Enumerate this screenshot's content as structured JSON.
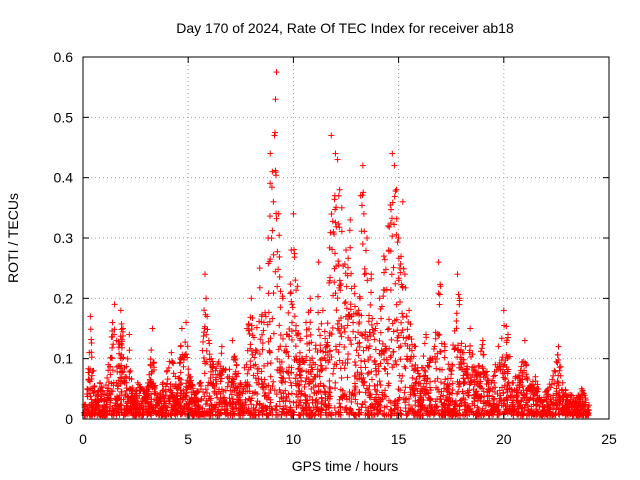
{
  "chart_data": {
    "type": "scatter",
    "title": "Day 170 of 2024, Rate Of TEC Index for receiver ab18",
    "xlabel": "GPS time / hours",
    "ylabel": "ROTI / TECUs",
    "xlim": [
      0,
      25
    ],
    "ylim": [
      0,
      0.6
    ],
    "x_ticks": [
      0,
      5,
      10,
      15,
      20,
      25
    ],
    "x_tick_labels": [
      "0",
      "5",
      "10",
      "15",
      "20",
      "25"
    ],
    "y_ticks": [
      0,
      0.1,
      0.2,
      0.3,
      0.4,
      0.5,
      0.6
    ],
    "y_tick_labels": [
      "0",
      "0.1",
      "0.2",
      "0.3",
      "0.4",
      "0.5",
      "0.6"
    ],
    "grid": true,
    "marker": "+",
    "marker_color": "#ff0000",
    "series": [
      {
        "name": "ROTI",
        "note": "approximate sample of the dense point cloud; [hour, ROTI] pairs",
        "points": [
          [
            0.1,
            0.02
          ],
          [
            0.2,
            0.05
          ],
          [
            0.3,
            0.11
          ],
          [
            0.35,
            0.17
          ],
          [
            0.5,
            0.08
          ],
          [
            0.6,
            0.03
          ],
          [
            0.8,
            0.06
          ],
          [
            1.0,
            0.04
          ],
          [
            1.2,
            0.09
          ],
          [
            1.4,
            0.16
          ],
          [
            1.5,
            0.19
          ],
          [
            1.6,
            0.13
          ],
          [
            1.8,
            0.18
          ],
          [
            1.9,
            0.15
          ],
          [
            2.0,
            0.07
          ],
          [
            2.2,
            0.14
          ],
          [
            2.4,
            0.03
          ],
          [
            2.6,
            0.06
          ],
          [
            2.8,
            0.05
          ],
          [
            3.0,
            0.04
          ],
          [
            3.2,
            0.09
          ],
          [
            3.3,
            0.15
          ],
          [
            3.5,
            0.03
          ],
          [
            3.8,
            0.06
          ],
          [
            4.0,
            0.08
          ],
          [
            4.2,
            0.11
          ],
          [
            4.5,
            0.05
          ],
          [
            4.7,
            0.15
          ],
          [
            4.9,
            0.16
          ],
          [
            5.1,
            0.07
          ],
          [
            5.3,
            0.04
          ],
          [
            5.6,
            0.06
          ],
          [
            5.8,
            0.24
          ],
          [
            5.85,
            0.2
          ],
          [
            5.9,
            0.17
          ],
          [
            6.1,
            0.1
          ],
          [
            6.3,
            0.08
          ],
          [
            6.6,
            0.12
          ],
          [
            6.9,
            0.06
          ],
          [
            7.1,
            0.13
          ],
          [
            7.3,
            0.09
          ],
          [
            7.6,
            0.05
          ],
          [
            7.8,
            0.15
          ],
          [
            8.0,
            0.2
          ],
          [
            8.2,
            0.11
          ],
          [
            8.4,
            0.25
          ],
          [
            8.6,
            0.16
          ],
          [
            8.8,
            0.3
          ],
          [
            8.9,
            0.44
          ],
          [
            9.0,
            0.41
          ],
          [
            9.05,
            0.36
          ],
          [
            9.1,
            0.47
          ],
          [
            9.15,
            0.53
          ],
          [
            9.2,
            0.575
          ],
          [
            9.3,
            0.34
          ],
          [
            9.5,
            0.2
          ],
          [
            9.7,
            0.14
          ],
          [
            9.9,
            0.28
          ],
          [
            10.0,
            0.34
          ],
          [
            10.2,
            0.22
          ],
          [
            10.4,
            0.1
          ],
          [
            10.6,
            0.16
          ],
          [
            10.8,
            0.2
          ],
          [
            11.0,
            0.07
          ],
          [
            11.2,
            0.26
          ],
          [
            11.4,
            0.18
          ],
          [
            11.6,
            0.12
          ],
          [
            11.8,
            0.47
          ],
          [
            11.9,
            0.31
          ],
          [
            12.0,
            0.44
          ],
          [
            12.1,
            0.43
          ],
          [
            12.2,
            0.38
          ],
          [
            12.3,
            0.35
          ],
          [
            12.5,
            0.28
          ],
          [
            12.7,
            0.33
          ],
          [
            12.9,
            0.22
          ],
          [
            13.1,
            0.18
          ],
          [
            13.2,
            0.37
          ],
          [
            13.3,
            0.42
          ],
          [
            13.35,
            0.34
          ],
          [
            13.5,
            0.3
          ],
          [
            13.7,
            0.24
          ],
          [
            13.9,
            0.15
          ],
          [
            14.1,
            0.2
          ],
          [
            14.3,
            0.27
          ],
          [
            14.5,
            0.32
          ],
          [
            14.7,
            0.44
          ],
          [
            14.8,
            0.42
          ],
          [
            14.9,
            0.38
          ],
          [
            15.0,
            0.3
          ],
          [
            15.2,
            0.36
          ],
          [
            15.3,
            0.24
          ],
          [
            15.5,
            0.18
          ],
          [
            15.8,
            0.12
          ],
          [
            16.0,
            0.07
          ],
          [
            16.3,
            0.14
          ],
          [
            16.6,
            0.1
          ],
          [
            16.9,
            0.26
          ],
          [
            17.0,
            0.22
          ],
          [
            17.2,
            0.12
          ],
          [
            17.5,
            0.08
          ],
          [
            17.8,
            0.24
          ],
          [
            17.9,
            0.2
          ],
          [
            18.1,
            0.11
          ],
          [
            18.4,
            0.15
          ],
          [
            18.7,
            0.07
          ],
          [
            19.0,
            0.13
          ],
          [
            19.3,
            0.05
          ],
          [
            19.6,
            0.09
          ],
          [
            20.0,
            0.18
          ],
          [
            20.2,
            0.14
          ],
          [
            20.4,
            0.06
          ],
          [
            20.8,
            0.08
          ],
          [
            21.0,
            0.13
          ],
          [
            21.2,
            0.05
          ],
          [
            21.5,
            0.07
          ],
          [
            21.8,
            0.03
          ],
          [
            22.1,
            0.05
          ],
          [
            22.4,
            0.08
          ],
          [
            22.6,
            0.12
          ],
          [
            22.8,
            0.06
          ],
          [
            23.1,
            0.04
          ],
          [
            23.4,
            0.03
          ],
          [
            23.7,
            0.05
          ],
          [
            24.0,
            0.02
          ]
        ]
      }
    ]
  }
}
